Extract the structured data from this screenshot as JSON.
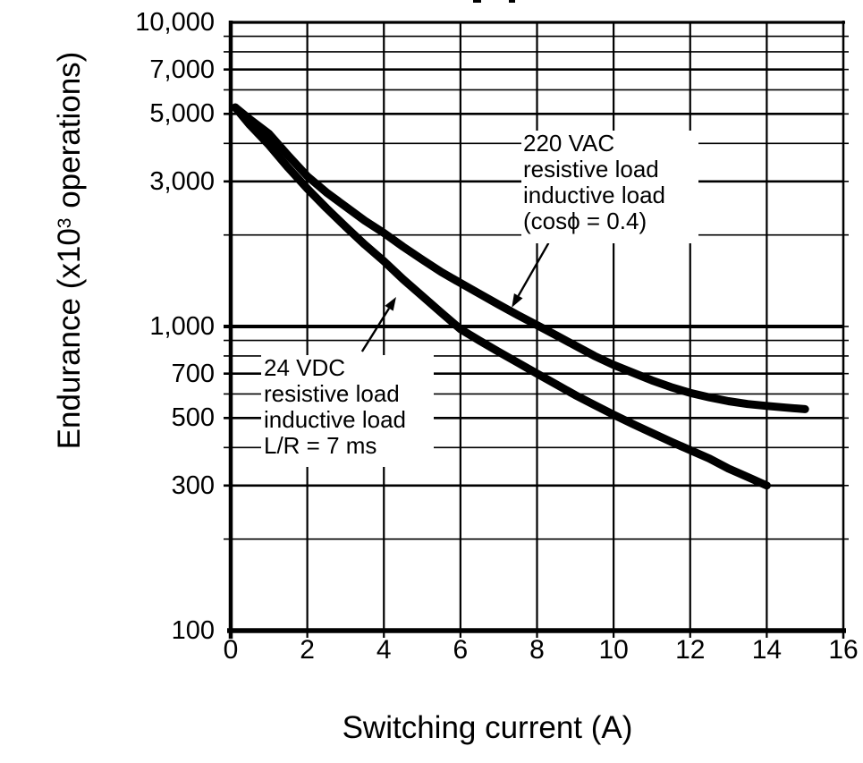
{
  "colors": {
    "ink": "#000000",
    "paper": "#ffffff"
  },
  "chart_data": {
    "type": "line",
    "title": "",
    "xlabel": "Switching current (A)",
    "ylabel": "Endurance (x10³ operations)",
    "ylabel_parts": {
      "prefix": "Endurance (x10",
      "sup": "3",
      "suffix": " operations)"
    },
    "x_axis": {
      "min": 0,
      "max": 16,
      "ticks": [
        0,
        2,
        4,
        6,
        8,
        10,
        12,
        14,
        16
      ]
    },
    "y_axis": {
      "scale": "log",
      "min": 100,
      "max": 10000,
      "labeled_ticks": [
        {
          "value": 10000,
          "label": "10,000"
        },
        {
          "value": 7000,
          "label": "7,000"
        },
        {
          "value": 5000,
          "label": "5,000"
        },
        {
          "value": 3000,
          "label": "3,000"
        },
        {
          "value": 1000,
          "label": "1,000"
        },
        {
          "value": 700,
          "label": "700"
        },
        {
          "value": 500,
          "label": "500"
        },
        {
          "value": 300,
          "label": "300"
        },
        {
          "value": 100,
          "label": "100"
        }
      ],
      "gridlines": {
        "minor": [
          200,
          400,
          600,
          800,
          900,
          2000,
          4000,
          6000,
          8000,
          9000
        ],
        "labeled": [
          300,
          500,
          700,
          3000,
          5000,
          7000
        ],
        "major": [
          1000
        ]
      }
    },
    "series": [
      {
        "id": "220vac",
        "name": "220 VAC resistive load / inductive load (cosϕ = 0.4)",
        "points": [
          [
            0.12,
            5250
          ],
          [
            0.5,
            4800
          ],
          [
            1,
            4300
          ],
          [
            1.5,
            3650
          ],
          [
            2,
            3120
          ],
          [
            2.5,
            2760
          ],
          [
            3,
            2480
          ],
          [
            3.5,
            2230
          ],
          [
            4,
            2030
          ],
          [
            4.5,
            1830
          ],
          [
            5,
            1660
          ],
          [
            5.5,
            1510
          ],
          [
            6,
            1390
          ],
          [
            6.5,
            1280
          ],
          [
            7,
            1180
          ],
          [
            7.5,
            1090
          ],
          [
            8,
            1010
          ],
          [
            8.5,
            935
          ],
          [
            9,
            865
          ],
          [
            9.5,
            800
          ],
          [
            10,
            748
          ],
          [
            10.5,
            705
          ],
          [
            11,
            665
          ],
          [
            11.5,
            632
          ],
          [
            12,
            605
          ],
          [
            12.5,
            585
          ],
          [
            13,
            568
          ],
          [
            13.5,
            556
          ],
          [
            14,
            548
          ],
          [
            14.5,
            541
          ],
          [
            15,
            535
          ]
        ]
      },
      {
        "id": "24vdc",
        "name": "24 VDC resistive load / inductive load L/R = 7 ms",
        "points": [
          [
            0.12,
            5250
          ],
          [
            0.5,
            4600
          ],
          [
            1,
            3950
          ],
          [
            1.5,
            3330
          ],
          [
            2,
            2840
          ],
          [
            2.5,
            2450
          ],
          [
            3,
            2130
          ],
          [
            3.5,
            1860
          ],
          [
            4,
            1640
          ],
          [
            4.5,
            1430
          ],
          [
            5,
            1260
          ],
          [
            5.5,
            1110
          ],
          [
            6,
            980
          ],
          [
            6.5,
            898
          ],
          [
            7,
            825
          ],
          [
            7.5,
            760
          ],
          [
            8,
            700
          ],
          [
            8.5,
            645
          ],
          [
            9,
            595
          ],
          [
            9.5,
            552
          ],
          [
            10,
            513
          ],
          [
            10.5,
            478
          ],
          [
            11,
            447
          ],
          [
            11.5,
            418
          ],
          [
            12,
            392
          ],
          [
            12.5,
            368
          ],
          [
            13,
            341
          ],
          [
            13.5,
            320
          ],
          [
            14,
            300
          ]
        ]
      }
    ],
    "annotations": [
      {
        "id": "220vac",
        "lines": [
          "220 VAC",
          "resistive load",
          "inductive load",
          "(cosϕ = 0.4)"
        ],
        "arrow": {
          "from": [
            8.3,
            1880
          ],
          "to": [
            7.34,
            1155
          ]
        }
      },
      {
        "id": "24vdc",
        "lines": [
          "24 VDC",
          "resistive load",
          "inductive load",
          "L/R = 7 ms"
        ],
        "arrow": {
          "from": [
            3.43,
            827
          ],
          "to": [
            4.32,
            1250
          ]
        }
      }
    ]
  }
}
